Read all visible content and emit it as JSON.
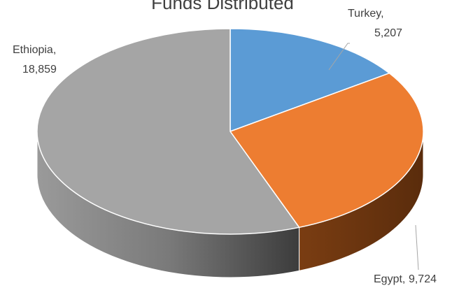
{
  "chart_data": {
    "type": "pie",
    "title": "Funds Distributed",
    "categories": [
      "Turkey",
      "Egypt",
      "Ethiopia"
    ],
    "values": [
      5207,
      9724,
      18859
    ],
    "value_labels": [
      "5,207",
      "9,724",
      "18,859"
    ],
    "colors": [
      "#5b9bd5",
      "#ed7d31",
      "#a5a5a5"
    ]
  }
}
